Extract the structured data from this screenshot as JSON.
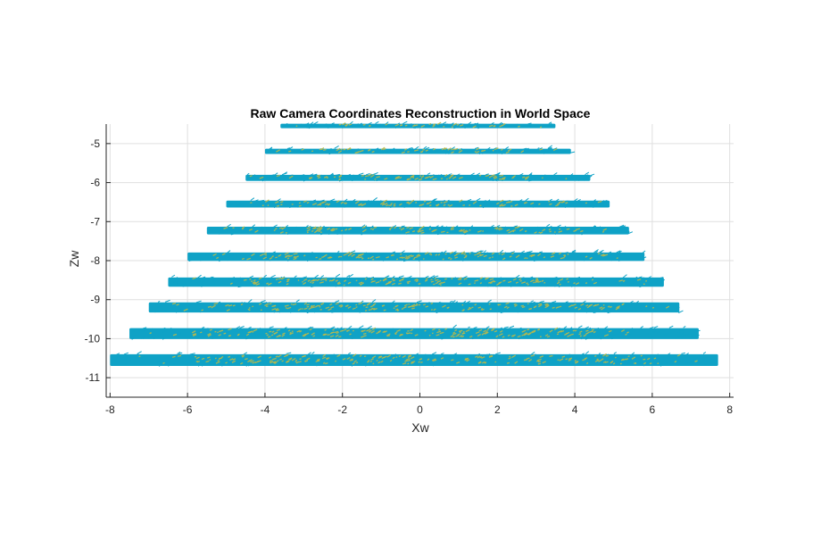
{
  "chart_data": {
    "type": "scatter",
    "title": "Raw Camera Coordinates Reconstruction in World Space",
    "xlabel": "Xw",
    "ylabel": "Zw",
    "xlim": [
      -8.1,
      8.1
    ],
    "ylim": [
      -11.5,
      -4.5
    ],
    "xticks": [
      -8,
      -6,
      -4,
      -2,
      0,
      2,
      4,
      6,
      8
    ],
    "yticks": [
      -5,
      -6,
      -7,
      -8,
      -9,
      -10,
      -11
    ],
    "grid": true,
    "colors": {
      "primary": "#0fa2c6",
      "secondary": "#b8b84a"
    },
    "rows": [
      {
        "z": -4.55,
        "x_min": -3.6,
        "x_max": 3.5
      },
      {
        "z": -5.2,
        "x_min": -4.0,
        "x_max": 3.9
      },
      {
        "z": -5.88,
        "x_min": -4.5,
        "x_max": 4.4
      },
      {
        "z": -6.55,
        "x_min": -5.0,
        "x_max": 4.9
      },
      {
        "z": -7.23,
        "x_min": -5.5,
        "x_max": 5.4
      },
      {
        "z": -7.9,
        "x_min": -6.0,
        "x_max": 5.8
      },
      {
        "z": -8.55,
        "x_min": -6.5,
        "x_max": 6.3
      },
      {
        "z": -9.2,
        "x_min": -7.0,
        "x_max": 6.7
      },
      {
        "z": -9.87,
        "x_min": -7.5,
        "x_max": 7.2
      },
      {
        "z": -10.55,
        "x_min": -8.0,
        "x_max": 7.7
      }
    ]
  }
}
